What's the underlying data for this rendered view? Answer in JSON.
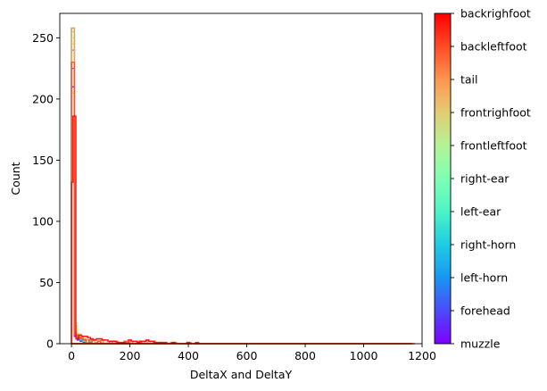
{
  "chart_data": {
    "type": "histogram",
    "xlabel": "DeltaX and DeltaY",
    "ylabel": "Count",
    "xlim": [
      -40,
      1200
    ],
    "ylim": [
      0,
      270
    ],
    "x_ticks": [
      0,
      200,
      400,
      600,
      800,
      1000,
      1200
    ],
    "y_ticks": [
      0,
      50,
      100,
      150,
      200,
      250
    ],
    "bin_width": 10,
    "grid": false,
    "histtype": "step",
    "colorbar": {
      "labels": [
        "muzzle",
        "forehead",
        "left-horn",
        "right-horn",
        "left-ear",
        "right-ear",
        "frontleftfoot",
        "frontrighfoot",
        "tail",
        "backleftfoot",
        "backrighfoot"
      ],
      "colors": [
        "#8000ff",
        "#4b4afc",
        "#1996f3",
        "#1ecbe1",
        "#4df4c7",
        "#80ffb4",
        "#b3f396",
        "#e2cb74",
        "#ff964f",
        "#ff4a25",
        "#ff0000"
      ]
    },
    "series": [
      {
        "name": "muzzle",
        "color": "#8000ff",
        "bins": [
          [
            0,
            210
          ],
          [
            10,
            6
          ],
          [
            20,
            3
          ],
          [
            30,
            2
          ],
          [
            40,
            1
          ]
        ]
      },
      {
        "name": "forehead",
        "color": "#4b4afc",
        "bins": [
          [
            0,
            225
          ],
          [
            10,
            8
          ],
          [
            20,
            4
          ],
          [
            30,
            2
          ],
          [
            40,
            1
          ],
          [
            60,
            1
          ]
        ]
      },
      {
        "name": "left-horn",
        "color": "#1996f3",
        "bins": [
          [
            0,
            240
          ],
          [
            10,
            9
          ],
          [
            20,
            5
          ],
          [
            30,
            3
          ],
          [
            40,
            2
          ],
          [
            60,
            1
          ]
        ]
      },
      {
        "name": "right-horn",
        "color": "#1ecbe1",
        "bins": [
          [
            0,
            258
          ],
          [
            10,
            12
          ],
          [
            20,
            6
          ],
          [
            30,
            3
          ],
          [
            40,
            2
          ],
          [
            50,
            1
          ],
          [
            80,
            1
          ]
        ]
      },
      {
        "name": "left-ear",
        "color": "#4df4c7",
        "bins": [
          [
            0,
            255
          ],
          [
            10,
            14
          ],
          [
            20,
            7
          ],
          [
            30,
            4
          ],
          [
            40,
            2
          ],
          [
            60,
            2
          ],
          [
            100,
            1
          ]
        ]
      },
      {
        "name": "right-ear",
        "color": "#80ffb4",
        "bins": [
          [
            0,
            250
          ],
          [
            10,
            17
          ],
          [
            20,
            8
          ],
          [
            30,
            5
          ],
          [
            40,
            3
          ],
          [
            70,
            2
          ],
          [
            120,
            1
          ]
        ]
      },
      {
        "name": "frontleftfoot",
        "color": "#b3f396",
        "bins": [
          [
            0,
            245
          ],
          [
            10,
            12
          ],
          [
            20,
            8
          ],
          [
            30,
            6
          ],
          [
            40,
            4
          ],
          [
            60,
            3
          ],
          [
            100,
            2
          ],
          [
            150,
            1
          ],
          [
            220,
            1
          ]
        ]
      },
      {
        "name": "frontrighfoot",
        "color": "#e2cb74",
        "bins": [
          [
            0,
            205
          ],
          [
            10,
            10
          ],
          [
            20,
            7
          ],
          [
            30,
            6
          ],
          [
            40,
            4
          ],
          [
            60,
            3
          ],
          [
            90,
            3
          ],
          [
            140,
            2
          ],
          [
            200,
            2
          ],
          [
            260,
            2
          ],
          [
            320,
            1
          ]
        ]
      },
      {
        "name": "tail",
        "color": "#ff964f",
        "bins": [
          [
            0,
            258
          ],
          [
            10,
            8
          ],
          [
            20,
            6
          ],
          [
            30,
            5
          ],
          [
            40,
            4
          ],
          [
            50,
            3
          ],
          [
            70,
            3
          ],
          [
            100,
            3
          ],
          [
            150,
            2
          ],
          [
            200,
            2
          ],
          [
            250,
            2
          ],
          [
            300,
            1
          ],
          [
            350,
            1
          ],
          [
            400,
            1
          ]
        ]
      },
      {
        "name": "backleftfoot",
        "color": "#ff4a25",
        "bins": [
          [
            0,
            230
          ],
          [
            10,
            7
          ],
          [
            20,
            5
          ],
          [
            30,
            4
          ],
          [
            40,
            3
          ],
          [
            60,
            3
          ],
          [
            90,
            2
          ],
          [
            130,
            2
          ],
          [
            180,
            2
          ],
          [
            230,
            2
          ],
          [
            280,
            1
          ],
          [
            340,
            1
          ]
        ]
      },
      {
        "name": "backrighfoot",
        "color": "#ff0000",
        "bins": [
          [
            0,
            132
          ],
          [
            5,
            186
          ],
          [
            15,
            4
          ],
          [
            25,
            7
          ],
          [
            35,
            6
          ],
          [
            45,
            6
          ],
          [
            55,
            5
          ],
          [
            65,
            4
          ],
          [
            75,
            3
          ],
          [
            85,
            4
          ],
          [
            95,
            4
          ],
          [
            105,
            3
          ],
          [
            115,
            3
          ],
          [
            125,
            2
          ],
          [
            135,
            2
          ],
          [
            145,
            2
          ],
          [
            155,
            1
          ],
          [
            165,
            1
          ],
          [
            175,
            1
          ],
          [
            195,
            3
          ],
          [
            205,
            2
          ],
          [
            215,
            2
          ],
          [
            225,
            1
          ],
          [
            235,
            2
          ],
          [
            245,
            2
          ],
          [
            255,
            3
          ],
          [
            265,
            2
          ],
          [
            275,
            2
          ],
          [
            285,
            1
          ],
          [
            295,
            1
          ],
          [
            305,
            1
          ],
          [
            315,
            1
          ],
          [
            345,
            1
          ],
          [
            395,
            1
          ],
          [
            425,
            1
          ],
          [
            1165,
            0
          ]
        ]
      }
    ]
  }
}
